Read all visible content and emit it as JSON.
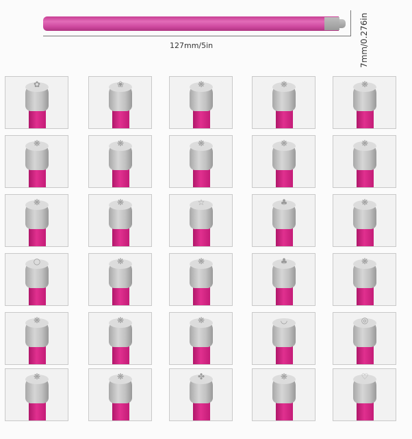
{
  "dimensions": {
    "length_label": "127mm/5in",
    "diameter_label": "7mm/0.276in"
  },
  "colors": {
    "rod": "#d04a9c",
    "stamp_head": "#c4c4c4",
    "stem": "#d4237f"
  },
  "stamps": [
    "flower",
    "rose",
    "rose-bud",
    "leaf",
    "heart-leaf",
    "infinity",
    "star-flower",
    "leaf-sprout",
    "tulip",
    "snowflake-flower",
    "five-petal-flower",
    "butterfly",
    "star",
    "clover",
    "swirl-flower",
    "circle",
    "lips",
    "pentagon-flower",
    "shamrock",
    "daisy",
    "tulip-cup",
    "sunflower",
    "paw",
    "smile",
    "spiral",
    "sprout",
    "bloom",
    "four-leaf-clover",
    "feather",
    "heart"
  ]
}
